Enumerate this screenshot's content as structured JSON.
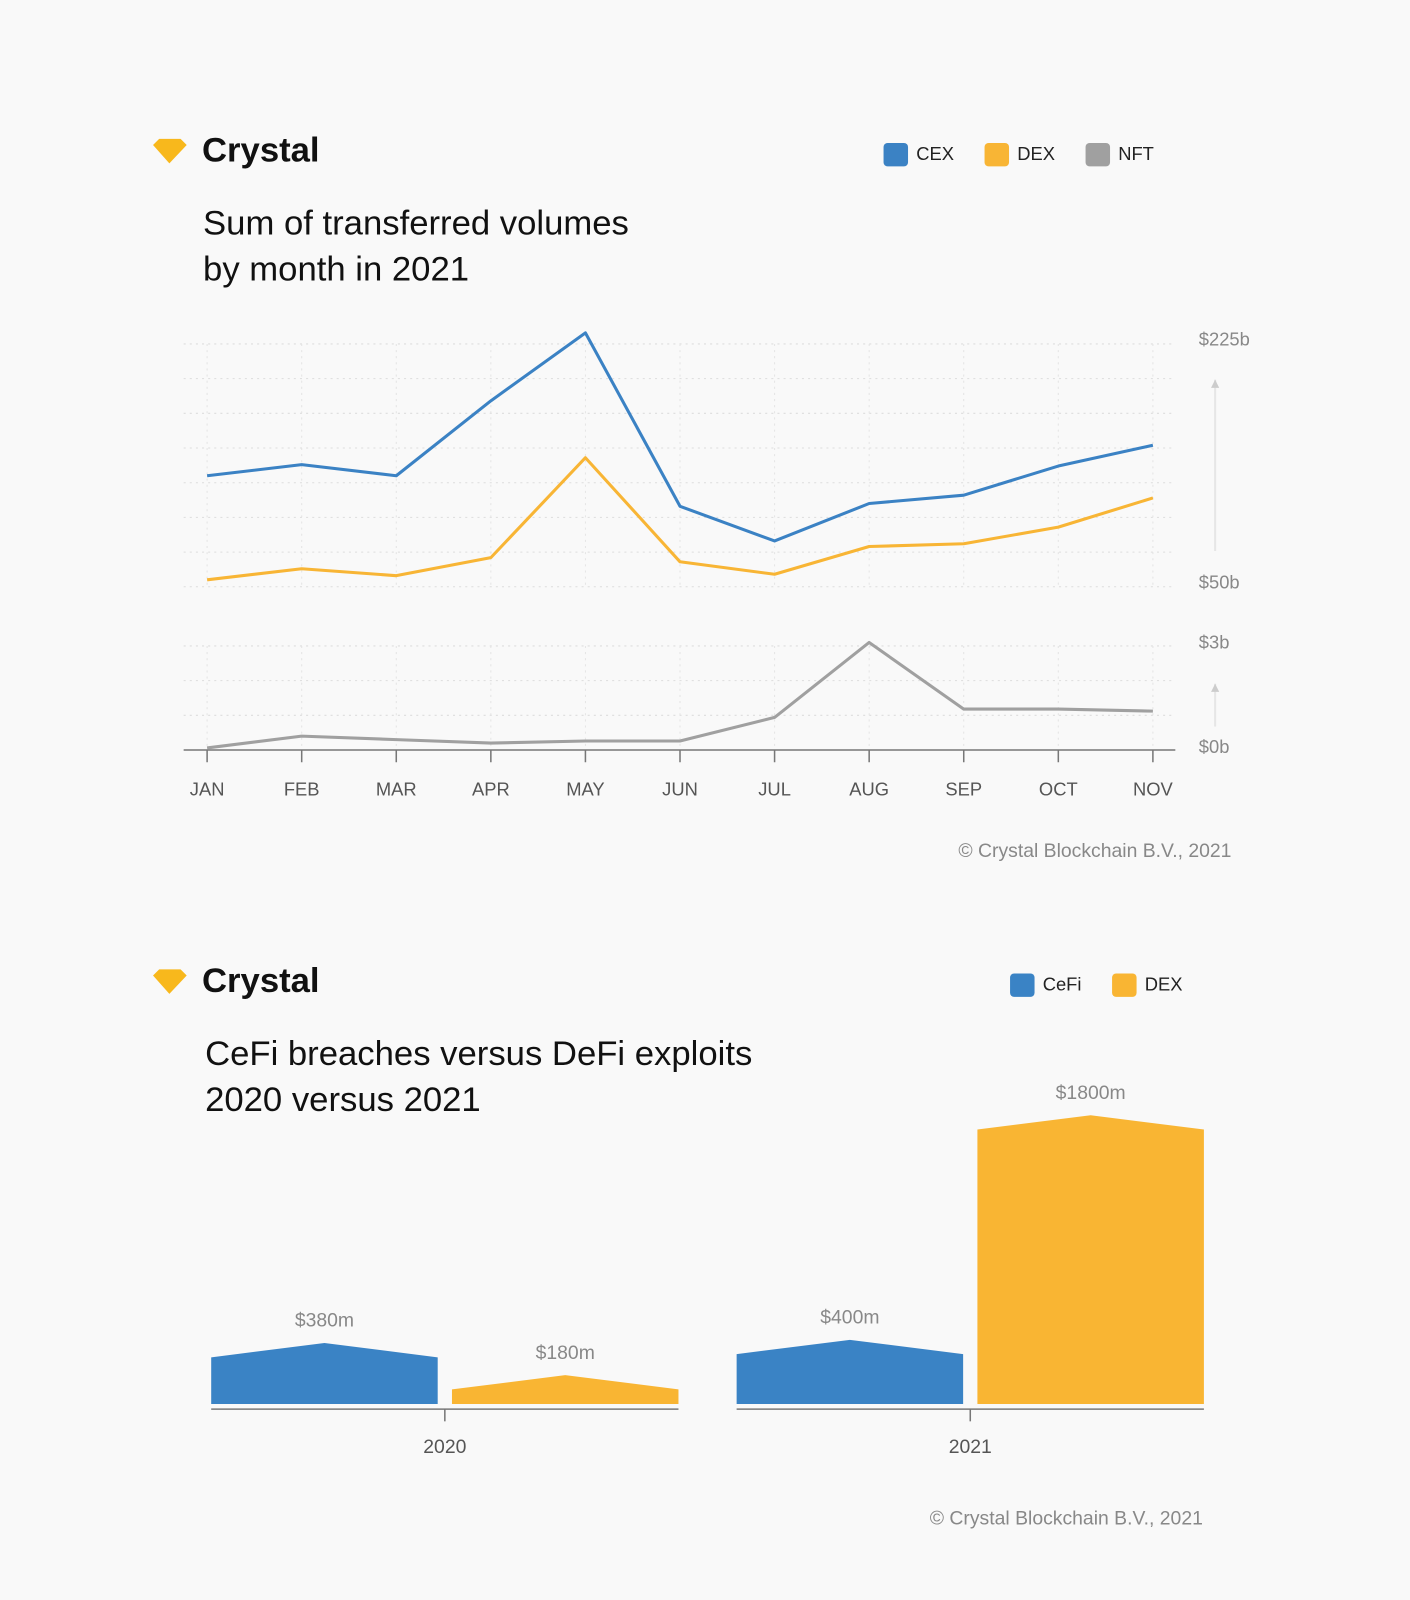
{
  "chart_data": [
    {
      "type": "line",
      "brand": "Crystal",
      "title": [
        "Sum of transferred volumes",
        "by month in 2021"
      ],
      "categories": [
        "JAN",
        "FEB",
        "MAR",
        "APR",
        "MAY",
        "JUN",
        "JUL",
        "AUG",
        "SEP",
        "OCT",
        "NOV"
      ],
      "series": [
        {
          "name": "CEX",
          "color": "#3b82c4",
          "values": [
            130,
            138,
            130,
            184,
            233,
            108,
            83,
            110,
            116,
            137,
            152
          ]
        },
        {
          "name": "DEX",
          "color": "#f8b535",
          "values": [
            55,
            63,
            58,
            71,
            143,
            68,
            59,
            79,
            81,
            93,
            114
          ]
        },
        {
          "name": "NFT",
          "color": "#a0a0a0",
          "axis": "y2",
          "values": [
            0.06,
            0.4,
            0.3,
            0.2,
            0.26,
            0.26,
            0.94,
            3.1,
            1.18,
            1.18,
            1.12
          ]
        }
      ],
      "ylim": [
        50,
        225
      ],
      "yticks": [
        {
          "value": 50,
          "label": "$50b"
        },
        {
          "value": 225,
          "label": "$225b"
        }
      ],
      "yminor": [
        50,
        75,
        100,
        125,
        150,
        175,
        200,
        225
      ],
      "y2lim": [
        0,
        3
      ],
      "y2ticks": [
        {
          "value": 0,
          "label": "$0b"
        },
        {
          "value": 3,
          "label": "$3b"
        }
      ],
      "y2minor": [
        0,
        1,
        2,
        3
      ],
      "grid": true,
      "legend": "top-right",
      "footer": "© Crystal Blockchain B.V., 2021"
    },
    {
      "type": "bar",
      "brand": "Crystal",
      "title": [
        "CeFi breaches versus DeFi exploits",
        "2020 versus 2021"
      ],
      "categories": [
        "2020",
        "2021"
      ],
      "series": [
        {
          "name": "CeFi",
          "color": "#3a83c5",
          "values": [
            380,
            400
          ],
          "value_labels": [
            "$380m",
            "$400m"
          ]
        },
        {
          "name": "DEX",
          "color": "#f9b533",
          "values": [
            180,
            1800
          ],
          "value_labels": [
            "$180m",
            "$1800m"
          ]
        }
      ],
      "ylim": [
        0,
        1800
      ],
      "legend": "top-right",
      "footer": "© Crystal Blockchain B.V., 2021"
    }
  ]
}
